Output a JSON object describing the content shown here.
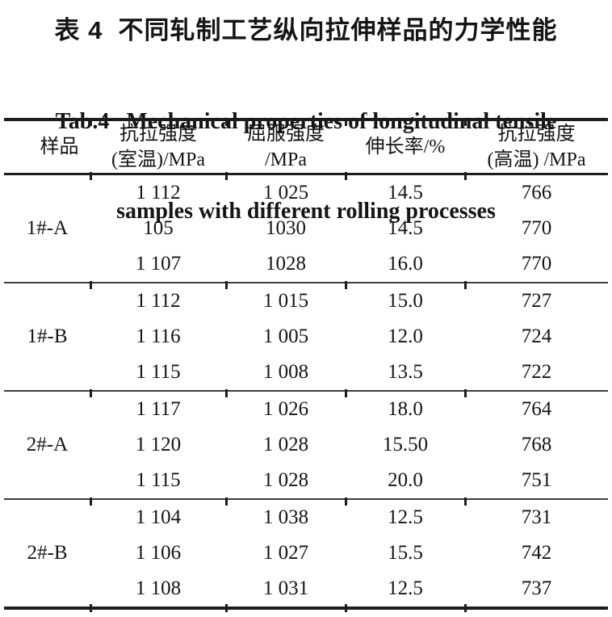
{
  "title": {
    "zh": "表 4  不同轧制工艺纵向拉伸样品的力学性能",
    "en_line1": "Tab.4   Mechanical properties of longitudinal tensile",
    "en_line2": "samples with different rolling processes"
  },
  "table": {
    "header": {
      "col1": [
        "样品"
      ],
      "col2": [
        "抗拉强度",
        "(室温)/MPa"
      ],
      "col3": [
        "屈服强度",
        "/MPa"
      ],
      "col4": [
        "伸长率/%"
      ],
      "col5": [
        "抗拉强度",
        "(高温) /MPa"
      ]
    },
    "groups": [
      {
        "sample": "1#-A",
        "rows": [
          [
            "1 112",
            "1 025",
            "14.5",
            "766"
          ],
          [
            "105",
            "1030",
            "14.5",
            "770"
          ],
          [
            "1 107",
            "1028",
            "16.0",
            "770"
          ]
        ]
      },
      {
        "sample": "1#-B",
        "rows": [
          [
            "1 112",
            "1 015",
            "15.0",
            "727"
          ],
          [
            "1 116",
            "1 005",
            "12.0",
            "724"
          ],
          [
            "1 115",
            "1 008",
            "13.5",
            "722"
          ]
        ]
      },
      {
        "sample": "2#-A",
        "rows": [
          [
            "1 117",
            "1 026",
            "18.0",
            "764"
          ],
          [
            "1 120",
            "1 028",
            "15.50",
            "768"
          ],
          [
            "1 115",
            "1 028",
            "20.0",
            "751"
          ]
        ]
      },
      {
        "sample": "2#-B",
        "rows": [
          [
            "1 104",
            "1 038",
            "12.5",
            "731"
          ],
          [
            "1 106",
            "1 027",
            "15.5",
            "742"
          ],
          [
            "1 108",
            "1 031",
            "12.5",
            "737"
          ]
        ]
      }
    ]
  },
  "colors": {
    "text": "#151515",
    "rule_heavy": "#1c1c1c",
    "rule_light": "#3d3d3d"
  }
}
